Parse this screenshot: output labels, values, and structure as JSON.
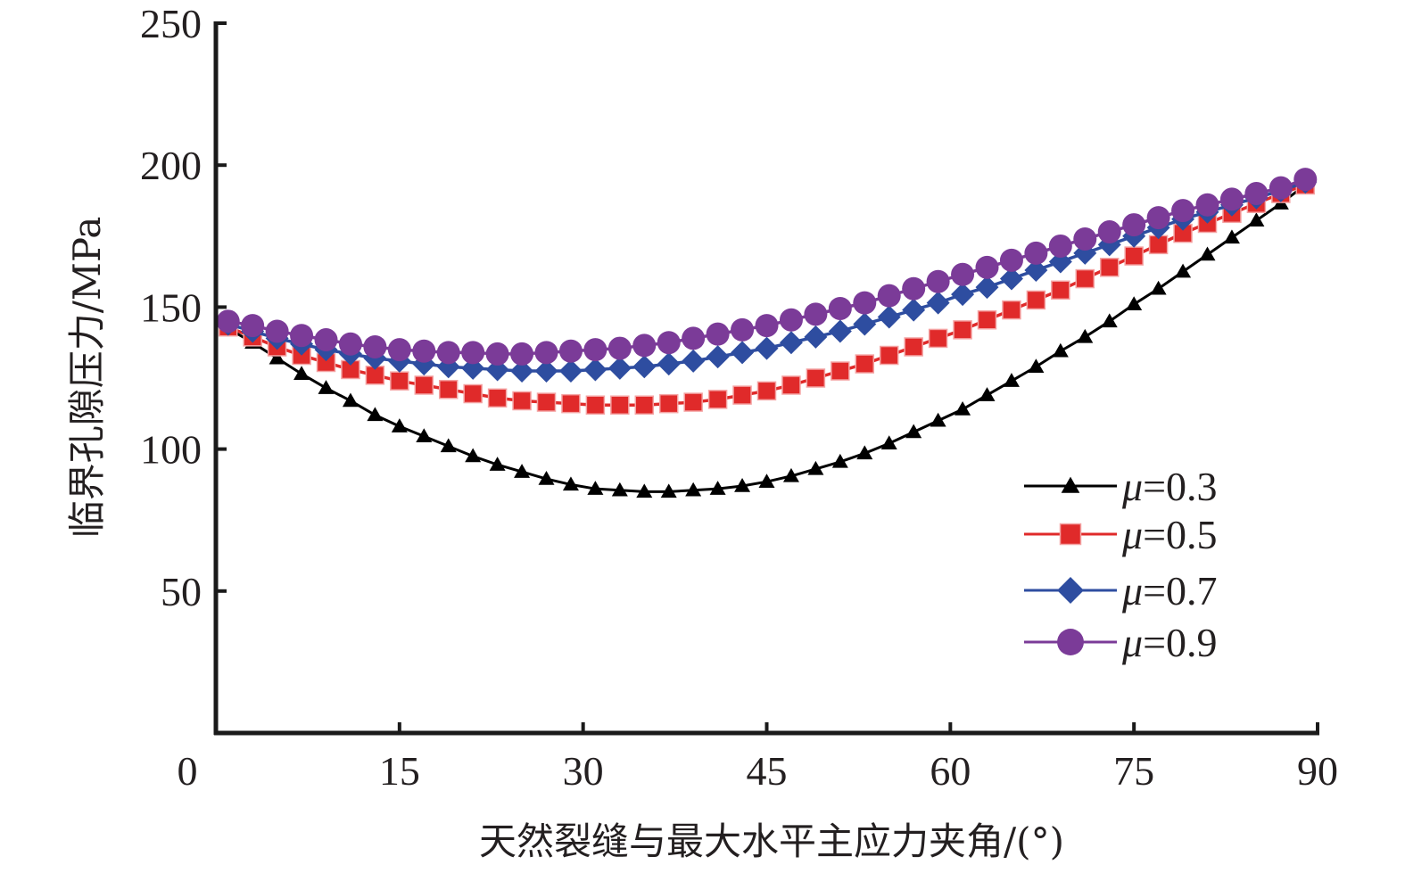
{
  "chart_data": {
    "type": "line",
    "title": "",
    "xlabel": "天然裂缝与最大水平主应力夹角/(°)",
    "ylabel": "临界孔隙压力/MPa",
    "xlim": [
      0,
      90
    ],
    "ylim": [
      0,
      250
    ],
    "xticks": [
      0,
      15,
      30,
      45,
      60,
      75,
      90
    ],
    "yticks": [
      50,
      100,
      150,
      200,
      250
    ],
    "xtick_labels": [
      "0",
      "15",
      "30",
      "45",
      "60",
      "75",
      "90"
    ],
    "ytick_labels": [
      "50",
      "100",
      "150",
      "200",
      "250"
    ],
    "grid": false,
    "legend_position": "lower-right",
    "x": [
      1,
      3,
      5,
      7,
      9,
      11,
      13,
      15,
      17,
      19,
      21,
      23,
      25,
      27,
      29,
      31,
      33,
      35,
      37,
      39,
      41,
      43,
      45,
      47,
      49,
      51,
      53,
      55,
      57,
      59,
      61,
      63,
      65,
      67,
      69,
      71,
      73,
      75,
      77,
      79,
      81,
      83,
      85,
      87,
      89
    ],
    "series": [
      {
        "name": "μ=0.3",
        "legend_mu": "μ",
        "legend_value": "=0.3",
        "color": "#000000",
        "marker": "triangle",
        "values": [
          142.5,
          137.5,
          132,
          126.5,
          121.5,
          117,
          112,
          108,
          104.5,
          101,
          97.5,
          94.5,
          92,
          89.5,
          87.5,
          86,
          85.5,
          85,
          85,
          85.5,
          86,
          87,
          88.5,
          90.5,
          93,
          95.5,
          98.5,
          102,
          106,
          110,
          114,
          119,
          124,
          129,
          134.5,
          139.5,
          145,
          151,
          156.5,
          162.5,
          168.5,
          174.5,
          180.5,
          186.5,
          193
        ]
      },
      {
        "name": "μ=0.5",
        "legend_mu": "μ",
        "legend_value": "=0.5",
        "color": "#e02a2a",
        "marker": "square",
        "values": [
          143,
          139.5,
          136,
          133,
          130.5,
          128,
          126,
          124,
          122.5,
          121,
          119.5,
          118,
          117,
          116.5,
          116,
          115.5,
          115.5,
          115.5,
          116,
          116.5,
          117.5,
          119,
          120.5,
          122.5,
          125,
          127.5,
          130,
          133,
          136,
          139,
          142,
          145.5,
          149,
          152.5,
          156,
          160,
          164,
          168,
          172,
          176,
          179.5,
          183,
          186.5,
          190,
          193
        ]
      },
      {
        "name": "μ=0.7",
        "legend_mu": "μ",
        "legend_value": "=0.7",
        "color": "#2e4da0",
        "marker": "diamond",
        "values": [
          144,
          141.5,
          139,
          137,
          135,
          133.5,
          132,
          131,
          130,
          129,
          128.5,
          128,
          127.5,
          127.5,
          127.5,
          128,
          128.5,
          129,
          130,
          131,
          132.5,
          134,
          135.5,
          137.5,
          139.5,
          141.5,
          144,
          146.5,
          149,
          151.5,
          154.5,
          157,
          160,
          163,
          166,
          169,
          172,
          175,
          178,
          181,
          183.5,
          186,
          188.5,
          191,
          194
        ]
      },
      {
        "name": "μ=0.9",
        "legend_mu": "μ",
        "legend_value": "=0.9",
        "color": "#7b3b98",
        "marker": "circle",
        "values": [
          145,
          143.5,
          141.5,
          140,
          138.5,
          137,
          136,
          135,
          134.5,
          134,
          134,
          133.5,
          133.5,
          134,
          134.5,
          135,
          135.5,
          136.5,
          137.5,
          139,
          140.5,
          142,
          143.5,
          145.5,
          147.5,
          149.5,
          151.5,
          154,
          156.5,
          159,
          161.5,
          164,
          166.5,
          169,
          171.5,
          174,
          176.5,
          179,
          181.5,
          184,
          186,
          188,
          190,
          192,
          195
        ]
      }
    ]
  }
}
